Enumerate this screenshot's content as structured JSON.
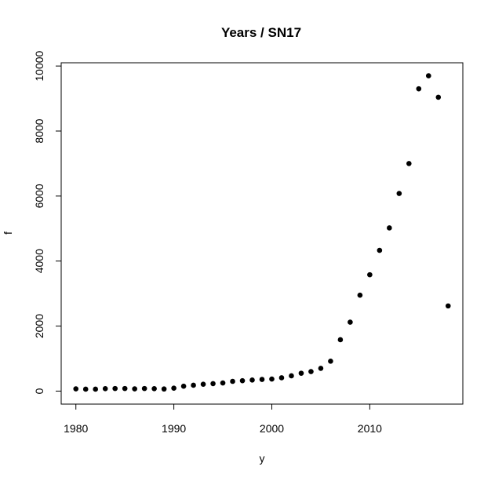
{
  "chart_data": {
    "type": "scatter",
    "title": "Years / SN17",
    "xlabel": "y",
    "ylabel": "f",
    "xlim": [
      1978.5,
      2019.5
    ],
    "ylim": [
      -400,
      10100
    ],
    "x_ticks": [
      1980,
      1990,
      2000,
      2010
    ],
    "y_ticks": [
      0,
      2000,
      4000,
      6000,
      8000,
      10000
    ],
    "grid": false,
    "legend": "none",
    "point_color": "#000000",
    "x": [
      1980,
      1981,
      1982,
      1983,
      1984,
      1985,
      1986,
      1987,
      1988,
      1989,
      1990,
      1991,
      1992,
      1993,
      1994,
      1995,
      1996,
      1997,
      1998,
      1999,
      2000,
      2001,
      2002,
      2003,
      2004,
      2005,
      2006,
      2007,
      2008,
      2009,
      2010,
      2011,
      2012,
      2013,
      2014,
      2015,
      2016,
      2017,
      2018
    ],
    "y": [
      70,
      60,
      60,
      75,
      80,
      80,
      70,
      80,
      75,
      65,
      90,
      150,
      180,
      210,
      230,
      250,
      300,
      320,
      340,
      360,
      370,
      410,
      470,
      550,
      600,
      700,
      920,
      1580,
      2120,
      2950,
      3580,
      4330,
      5020,
      6080,
      7000,
      9300,
      9700,
      9040,
      2620
    ]
  }
}
